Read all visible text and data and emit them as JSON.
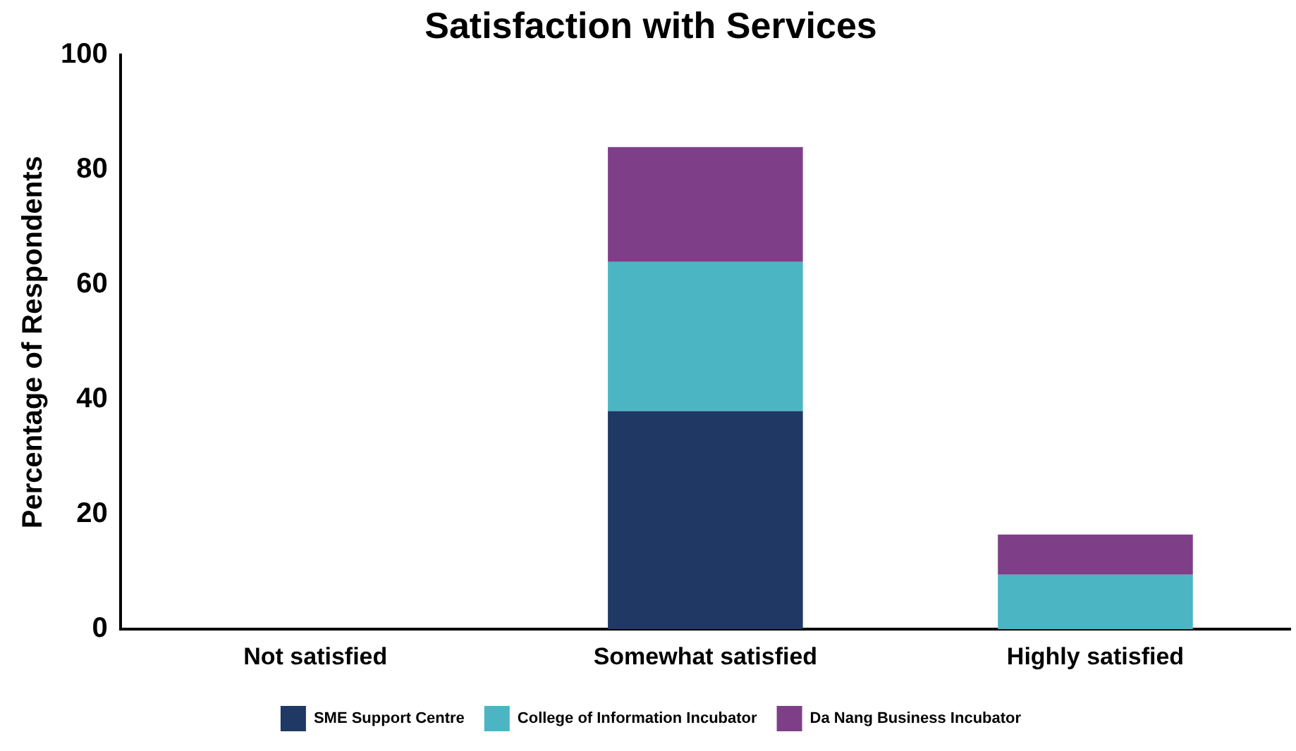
{
  "chart_data": {
    "type": "bar",
    "title": "Satisfaction with Services",
    "ylabel": "Percentage of Respondents",
    "categories": [
      "Not satisfied",
      "Somewhat satisfied",
      "Highly satisfied"
    ],
    "series": [
      {
        "name": "SME Support Centre",
        "color": "#203864",
        "values": [
          0,
          38,
          0
        ]
      },
      {
        "name": "College of Information Incubator",
        "color": "#4bb5c4",
        "values": [
          0,
          26,
          9.5
        ]
      },
      {
        "name": "Da Nang Business Incubator",
        "color": "#7f3f88",
        "values": [
          0,
          20,
          7
        ]
      }
    ],
    "stacked": true,
    "ylim": [
      0,
      100
    ],
    "yticks": [
      0,
      20,
      40,
      60,
      80,
      100
    ],
    "grid": false,
    "legend": "bottom"
  }
}
